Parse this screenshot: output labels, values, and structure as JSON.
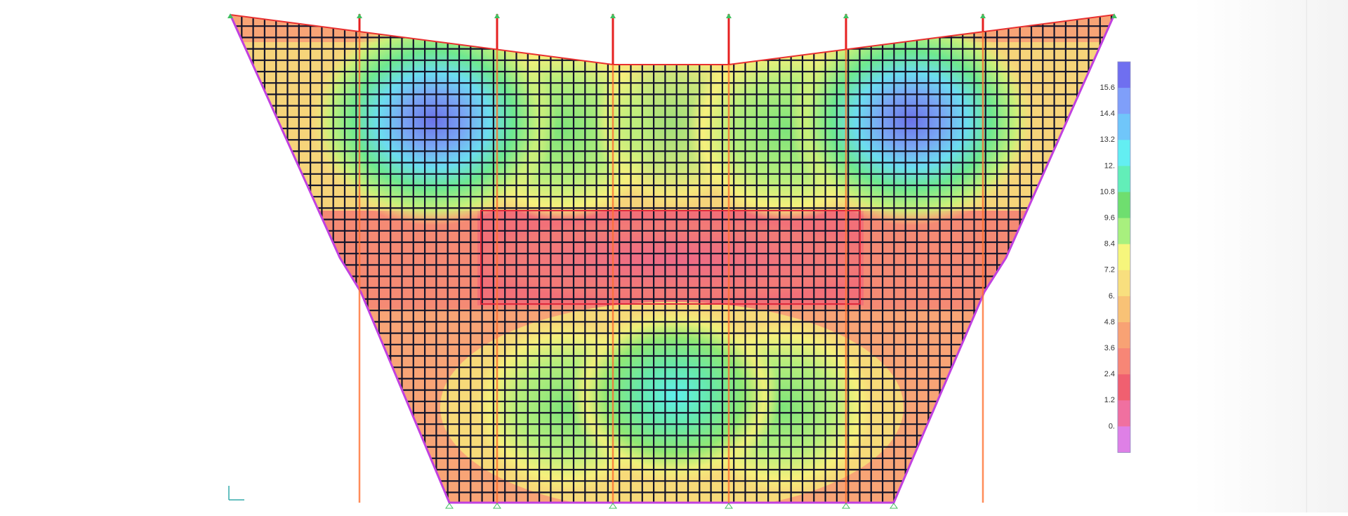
{
  "legend": {
    "labels": [
      "15.6",
      "14.4",
      "13.2",
      "12.",
      "10.8",
      "9.6",
      "8.4",
      "7.2",
      "6.",
      "4.8",
      "3.6",
      "2.4",
      "1.2",
      "0."
    ],
    "colors": [
      "#6f6ff0",
      "#7f9ffa",
      "#70c6fa",
      "#63eef2",
      "#62eeb8",
      "#6fde6f",
      "#a8f07e",
      "#f6f67c",
      "#f8df7e",
      "#f8c276",
      "#f8a274",
      "#f78676",
      "#f06070",
      "#f070a0",
      "#de80e6"
    ]
  }
}
